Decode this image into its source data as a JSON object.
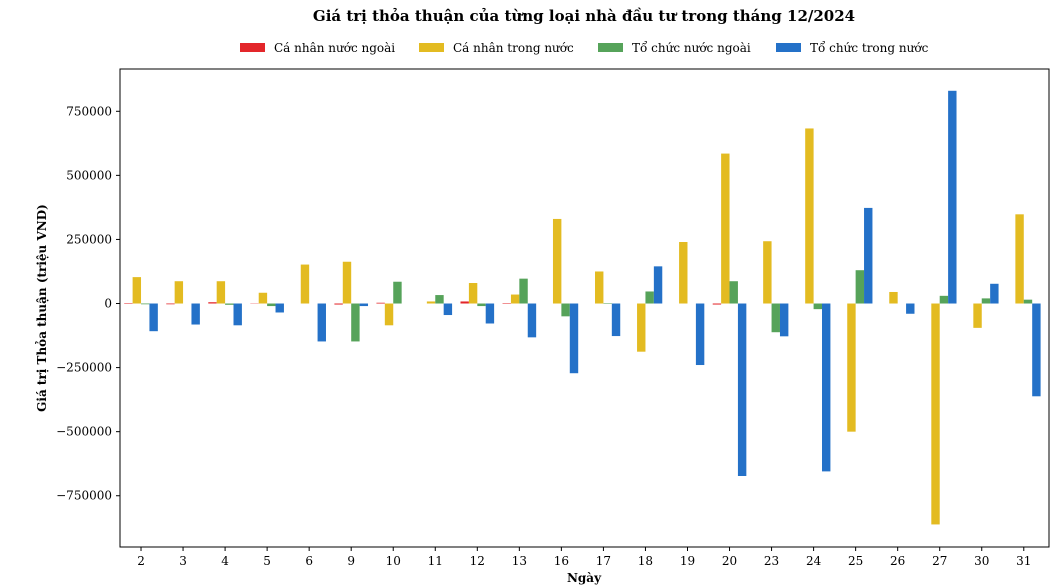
{
  "chart_data": {
    "type": "bar",
    "title": "Giá trị thỏa thuận của từng loại nhà đầu tư trong tháng 12/2024",
    "xlabel": "Ngày",
    "ylabel": "Giá trị Thỏa thuận (triệu VND)",
    "categories": [
      "2",
      "3",
      "4",
      "5",
      "6",
      "9",
      "10",
      "11",
      "12",
      "13",
      "16",
      "17",
      "18",
      "19",
      "20",
      "23",
      "24",
      "25",
      "26",
      "27",
      "30",
      "31"
    ],
    "ylim": [
      -950000,
      915000
    ],
    "yticks": [
      -750000,
      -500000,
      -250000,
      0,
      250000,
      500000,
      750000
    ],
    "ytick_labels": [
      "−750000",
      "−500000",
      "−250000",
      "0",
      "250000",
      "500000",
      "750000"
    ],
    "grid": false,
    "legend_position": "top-center",
    "series": [
      {
        "name": "Cá nhân nước ngoài",
        "color": "#e3262a",
        "values": [
          2000,
          -3000,
          5000,
          1000,
          0,
          -4000,
          3000,
          0,
          8000,
          2000,
          0,
          0,
          0,
          0,
          -4000,
          0,
          0,
          0,
          0,
          0,
          0,
          0
        ]
      },
      {
        "name": "Cá nhân trong nước",
        "color": "#e3bb21",
        "values": [
          103000,
          87000,
          87000,
          42000,
          152000,
          163000,
          -85000,
          8000,
          80000,
          35000,
          330000,
          125000,
          -188000,
          240000,
          585000,
          243000,
          683000,
          -500000,
          45000,
          -862000,
          -95000,
          348000
        ]
      },
      {
        "name": "Tổ chức nước ngoài",
        "color": "#56a35a",
        "values": [
          -3000,
          0,
          -5000,
          -10000,
          0,
          -148000,
          85000,
          33000,
          -10000,
          97000,
          -50000,
          2000,
          47000,
          0,
          87000,
          -112000,
          -22000,
          130000,
          0,
          30000,
          20000,
          15000
        ]
      },
      {
        "name": "Tổ chức trong nước",
        "color": "#2471c8",
        "values": [
          -108000,
          -82000,
          -85000,
          -35000,
          -148000,
          -10000,
          0,
          -45000,
          -78000,
          -132000,
          -272000,
          -127000,
          145000,
          -240000,
          -673000,
          -128000,
          -655000,
          373000,
          -40000,
          830000,
          77000,
          -362000
        ]
      }
    ]
  }
}
